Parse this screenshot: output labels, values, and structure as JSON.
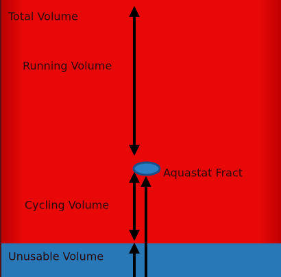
{
  "labels": {
    "total_volume": "Total Volume",
    "running_volume": "Running Volume",
    "aquastat": "Aquastat Fract",
    "cycling_volume": "Cycling Volume",
    "unusable_volume": "Unusable Volume"
  }
}
